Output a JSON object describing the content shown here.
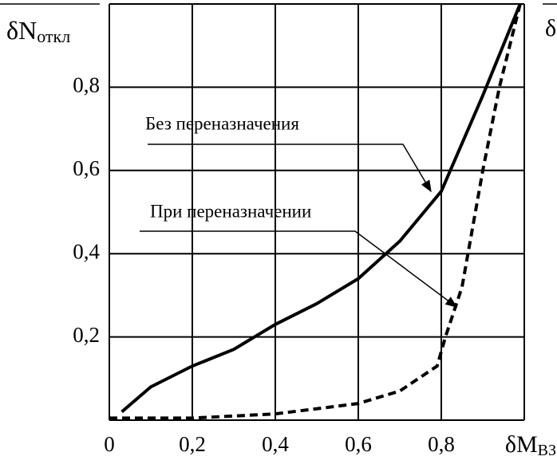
{
  "chart_data": {
    "type": "line",
    "ylabel": {
      "main": "δN",
      "sub": "откл"
    },
    "xlabel": {
      "main": "δM",
      "sub": "ВЗ"
    },
    "clipped_label": "δ",
    "xlim": [
      0,
      1
    ],
    "ylim": [
      0,
      1
    ],
    "xticks": [
      0,
      {
        "value": 0.2,
        "label": "0,2"
      },
      {
        "value": 0.4,
        "label": "0,4"
      },
      {
        "value": 0.6,
        "label": "0,6"
      },
      {
        "value": 0.8,
        "label": "0,8"
      }
    ],
    "yticks": [
      {
        "value": 0.2,
        "label": "0,2"
      },
      {
        "value": 0.4,
        "label": "0,4"
      },
      {
        "value": 0.6,
        "label": "0,6"
      },
      {
        "value": 0.8,
        "label": "0,8"
      }
    ],
    "grid": true,
    "series": [
      {
        "name": "Без переназначения",
        "color": "#000000",
        "style": "solid",
        "x": [
          0.03,
          0.1,
          0.2,
          0.3,
          0.4,
          0.5,
          0.6,
          0.7,
          0.8,
          0.9,
          0.99
        ],
        "values": [
          0.02,
          0.08,
          0.13,
          0.17,
          0.23,
          0.28,
          0.34,
          0.43,
          0.55,
          0.78,
          1.0
        ]
      },
      {
        "name": "При переназначении",
        "color": "#000000",
        "style": "dashed",
        "x": [
          0.0,
          0.2,
          0.4,
          0.6,
          0.7,
          0.79,
          0.81,
          0.85,
          0.9,
          0.94,
          0.99
        ],
        "values": [
          0.005,
          0.005,
          0.015,
          0.04,
          0.07,
          0.13,
          0.2,
          0.32,
          0.6,
          0.8,
          1.0
        ]
      }
    ]
  }
}
